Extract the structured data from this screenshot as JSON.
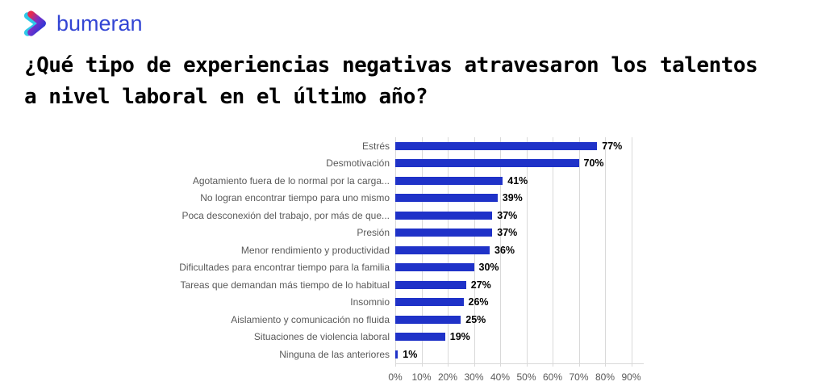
{
  "logo": {
    "brand": "bumeran"
  },
  "title": {
    "line1": "¿Qué tipo de experiencias negativas atravesaron los talentos",
    "line2": "a nivel laboral en el último año?"
  },
  "chart_data": {
    "type": "bar",
    "orientation": "horizontal",
    "title": "¿Qué tipo de experiencias negativas atravesaron los talentos a nivel laboral en el último año?",
    "categories": [
      "Estrés",
      "Desmotivación",
      "Agotamiento fuera de lo normal por la carga...",
      "No logran encontrar tiempo para uno mismo",
      "Poca desconexión del trabajo, por más de que...",
      "Presión",
      "Menor rendimiento y productividad",
      "Dificultades para encontrar tiempo para la familia",
      "Tareas que demandan más tiempo de lo habitual",
      "Insomnio",
      "Aislamiento y comunicación no fluida",
      "Situaciones de violencia laboral",
      "Ninguna de las anteriores"
    ],
    "values": [
      77,
      70,
      41,
      39,
      37,
      37,
      36,
      30,
      27,
      26,
      25,
      19,
      1
    ],
    "value_suffix": "%",
    "x_ticks": [
      "0%",
      "10%",
      "20%",
      "30%",
      "40%",
      "50%",
      "60%",
      "70%",
      "80%",
      "90%"
    ],
    "xlim": [
      0,
      95
    ],
    "grid": true,
    "legend": false,
    "xlabel": "",
    "ylabel": ""
  },
  "colors": {
    "bar": "#1f32c8",
    "category_label": "#595959",
    "axis_label": "#595959",
    "value_label": "#000000",
    "brand_blue": "#3345d4",
    "gridline": "#d9d9d9"
  }
}
